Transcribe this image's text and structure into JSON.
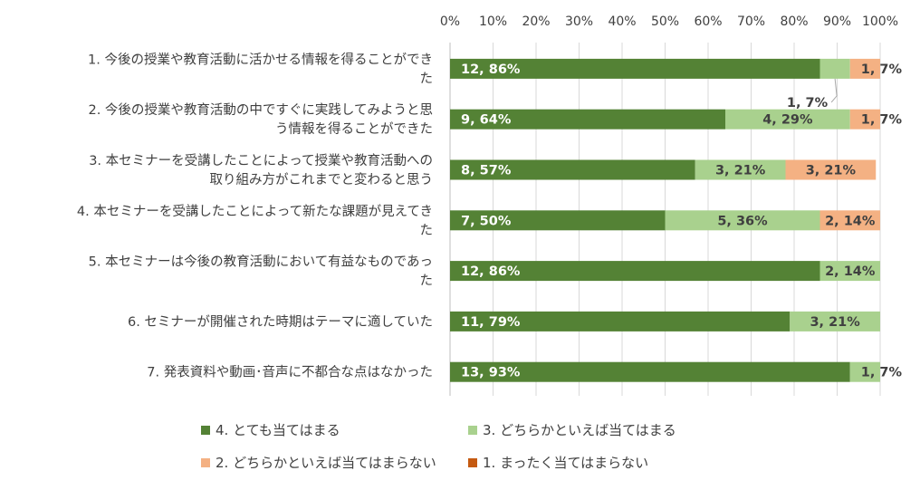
{
  "chart_data": {
    "type": "bar",
    "orientation": "horizontal",
    "stacked": "percent",
    "xlim": [
      0,
      100
    ],
    "x_ticks": [
      "0%",
      "10%",
      "20%",
      "30%",
      "40%",
      "50%",
      "60%",
      "70%",
      "80%",
      "90%",
      "100%"
    ],
    "grid": true,
    "legend_position": "bottom",
    "categories": [
      [
        "1. 今後の授業や教育活動に活かせる情報を得ることができ",
        "た"
      ],
      [
        "2. 今後の授業や教育活動の中ですぐに実践してみようと思",
        "う情報を得ることができた"
      ],
      [
        "3. 本セミナーを受講したことによって授業や教育活動への",
        "取り組み方がこれまでと変わると思う"
      ],
      [
        "4. 本セミナーを受講したことによって新たな課題が見えてき",
        "た"
      ],
      [
        "5. 本セミナーは今後の教育活動において有益なものであっ",
        "た"
      ],
      [
        "6. セミナーが開催された時期はテーマに適していた"
      ],
      [
        "7. 発表資料や動画･音声に不都合な点はなかった"
      ]
    ],
    "series": [
      {
        "name": "4. とても当てはまる",
        "color": "#548235",
        "values": [
          86,
          64,
          57,
          50,
          86,
          79,
          93
        ],
        "labels": [
          "12, 86%",
          "9, 64%",
          "8, 57%",
          "7, 50%",
          "12, 86%",
          "11, 79%",
          "13, 93%"
        ],
        "label_color": "#ffffff"
      },
      {
        "name": "3. どちらかといえば当てはまる",
        "color": "#a9d18e",
        "values": [
          7,
          29,
          21,
          36,
          14,
          21,
          7
        ],
        "labels": [
          "1, 7%",
          "4, 29%",
          "3, 21%",
          "5, 36%",
          "2, 14%",
          "3, 21%",
          "1, 7%"
        ],
        "label_color": "#404040"
      },
      {
        "name": "2. どちらかといえば当てはまらない",
        "color": "#f4b183",
        "values": [
          7,
          7,
          21,
          14,
          0,
          0,
          0
        ],
        "labels": [
          "1, 7%",
          "1, 7%",
          "3, 21%",
          "2, 14%",
          "",
          "",
          ""
        ],
        "label_color": "#404040"
      },
      {
        "name": "1. まったく当てはまらない",
        "color": "#c55a11",
        "values": [
          0,
          0,
          0,
          0,
          0,
          0,
          0
        ],
        "labels": [
          "",
          "",
          "",
          "",
          "",
          "",
          ""
        ],
        "label_color": "#404040"
      }
    ]
  }
}
